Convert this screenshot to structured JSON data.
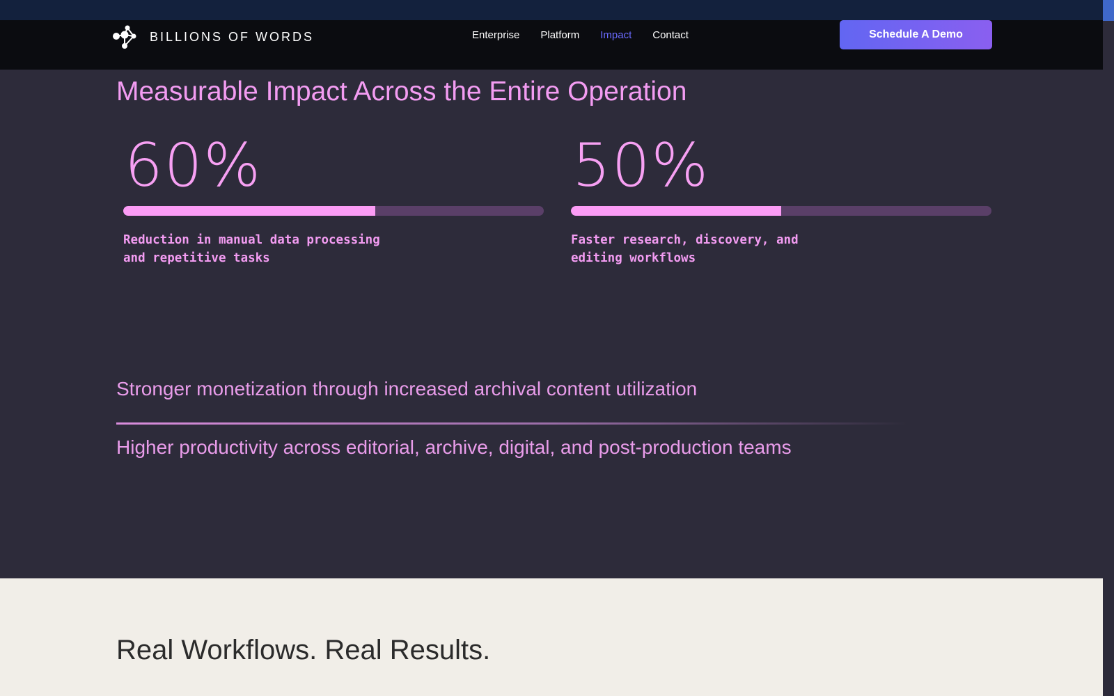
{
  "brand": {
    "name": "BILLIONS OF WORDS"
  },
  "nav": {
    "items": [
      {
        "label": "Enterprise"
      },
      {
        "label": "Platform"
      },
      {
        "label": "Impact"
      },
      {
        "label": "Contact"
      }
    ],
    "active": "Impact",
    "cta_label": "Schedule A Demo"
  },
  "impact": {
    "title": "Measurable Impact Across the Entire Operation",
    "stats": [
      {
        "value": "60%",
        "progress": 0.6,
        "description": "Reduction in manual data processing and repetitive tasks"
      },
      {
        "value": "50%",
        "progress": 0.5,
        "description": "Faster research, discovery, and editing workflows"
      }
    ],
    "benefits": [
      "Stronger monetization through increased archival content utilization",
      "Higher productivity across editorial, archive, digital, and post-production teams"
    ]
  },
  "results": {
    "title": "Real Workflows. Real Results."
  },
  "colors": {
    "accent_pink": "#f39cf2",
    "progress_fill": "#fb9cf5",
    "progress_track": "#5a3f68",
    "cta_start": "#6266f2",
    "cta_end": "#8a5ff0",
    "nav_active": "#6b6bff",
    "section_bg": "#2d2b3a",
    "results_bg": "#f1eee8"
  },
  "icons": {
    "logo": "network-nodes-logo-icon"
  }
}
